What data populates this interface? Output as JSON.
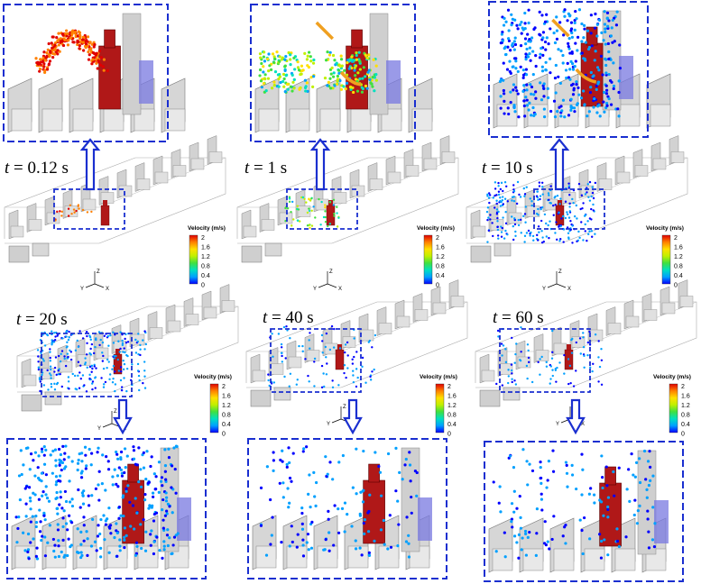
{
  "panels": [
    {
      "id": "p1",
      "time_value": "0.12",
      "time_unit": "s",
      "spread": "initial",
      "color_mode": "hot",
      "arrow": "up"
    },
    {
      "id": "p2",
      "time_value": "1",
      "time_unit": "s",
      "spread": "early",
      "color_mode": "mixed",
      "arrow": "up"
    },
    {
      "id": "p3",
      "time_value": "10",
      "time_unit": "s",
      "spread": "wide",
      "color_mode": "cool",
      "arrow": "up"
    },
    {
      "id": "p4",
      "time_value": "20",
      "time_unit": "s",
      "spread": "wide",
      "color_mode": "cool",
      "arrow": "down"
    },
    {
      "id": "p5",
      "time_value": "40",
      "time_unit": "s",
      "spread": "sparse",
      "color_mode": "cool",
      "arrow": "down"
    },
    {
      "id": "p6",
      "time_value": "60",
      "time_unit": "s",
      "spread": "sparse",
      "color_mode": "cool",
      "arrow": "down"
    }
  ],
  "time_symbol": "t",
  "time_eq": "=",
  "colorbar": {
    "title": "Velocity (m/s)",
    "ticks": [
      "2",
      "1.6",
      "1.2",
      "0.8",
      "0.4",
      "0"
    ],
    "colors": [
      "#0000ff",
      "#00a0ff",
      "#00e0c0",
      "#40e040",
      "#c0f000",
      "#ffe000",
      "#ff8000",
      "#e00000"
    ]
  },
  "axes": {
    "y": "Y",
    "z": "Z",
    "x": "X"
  },
  "colors": {
    "box_border": "#1a2fd0",
    "arrow": "#1a2fd0",
    "source_red": "#b01818",
    "highlight_blue": "#7878e0",
    "flow_arrow": "#f0a020",
    "partition": "#c8c8c8"
  }
}
